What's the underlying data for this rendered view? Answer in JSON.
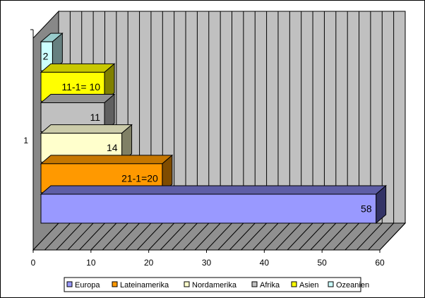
{
  "chart_data": {
    "type": "bar",
    "orientation": "horizontal",
    "three_d": true,
    "categories": [
      "1"
    ],
    "series": [
      {
        "name": "Europa",
        "value": 58,
        "label": "58",
        "color": "#9999ff",
        "side_color": "#333366",
        "top_color": "#5e5ea6"
      },
      {
        "name": "Lateinamerika",
        "value": 21,
        "label": "21-1=20",
        "color": "#ff9900",
        "side_color": "#7f4c00",
        "top_color": "#c67700"
      },
      {
        "name": "Nordamerika",
        "value": 14,
        "label": "14",
        "color": "#ffffcc",
        "side_color": "#808066",
        "top_color": "#ccccaa"
      },
      {
        "name": "Afrika",
        "value": 11,
        "label": "11",
        "color": "#c0c0c0",
        "side_color": "#606060",
        "top_color": "#909090"
      },
      {
        "name": "Asien",
        "value": 11,
        "label": "11-1= 10",
        "color": "#ffff00",
        "side_color": "#808000",
        "top_color": "#c8c800"
      },
      {
        "name": "Ozeanien",
        "value": 2,
        "label": "2",
        "color": "#ccffff",
        "side_color": "#668080",
        "top_color": "#99cccc"
      }
    ],
    "x_ticks": [
      "0",
      "10",
      "20",
      "30",
      "40",
      "50",
      "60"
    ],
    "xlim": [
      0,
      60
    ],
    "grid": true,
    "legend_position": "bottom",
    "colors": {
      "wall": "#c0c0c0",
      "floor": "#909090",
      "side_wall": "#888888",
      "grid": "#000000"
    }
  }
}
